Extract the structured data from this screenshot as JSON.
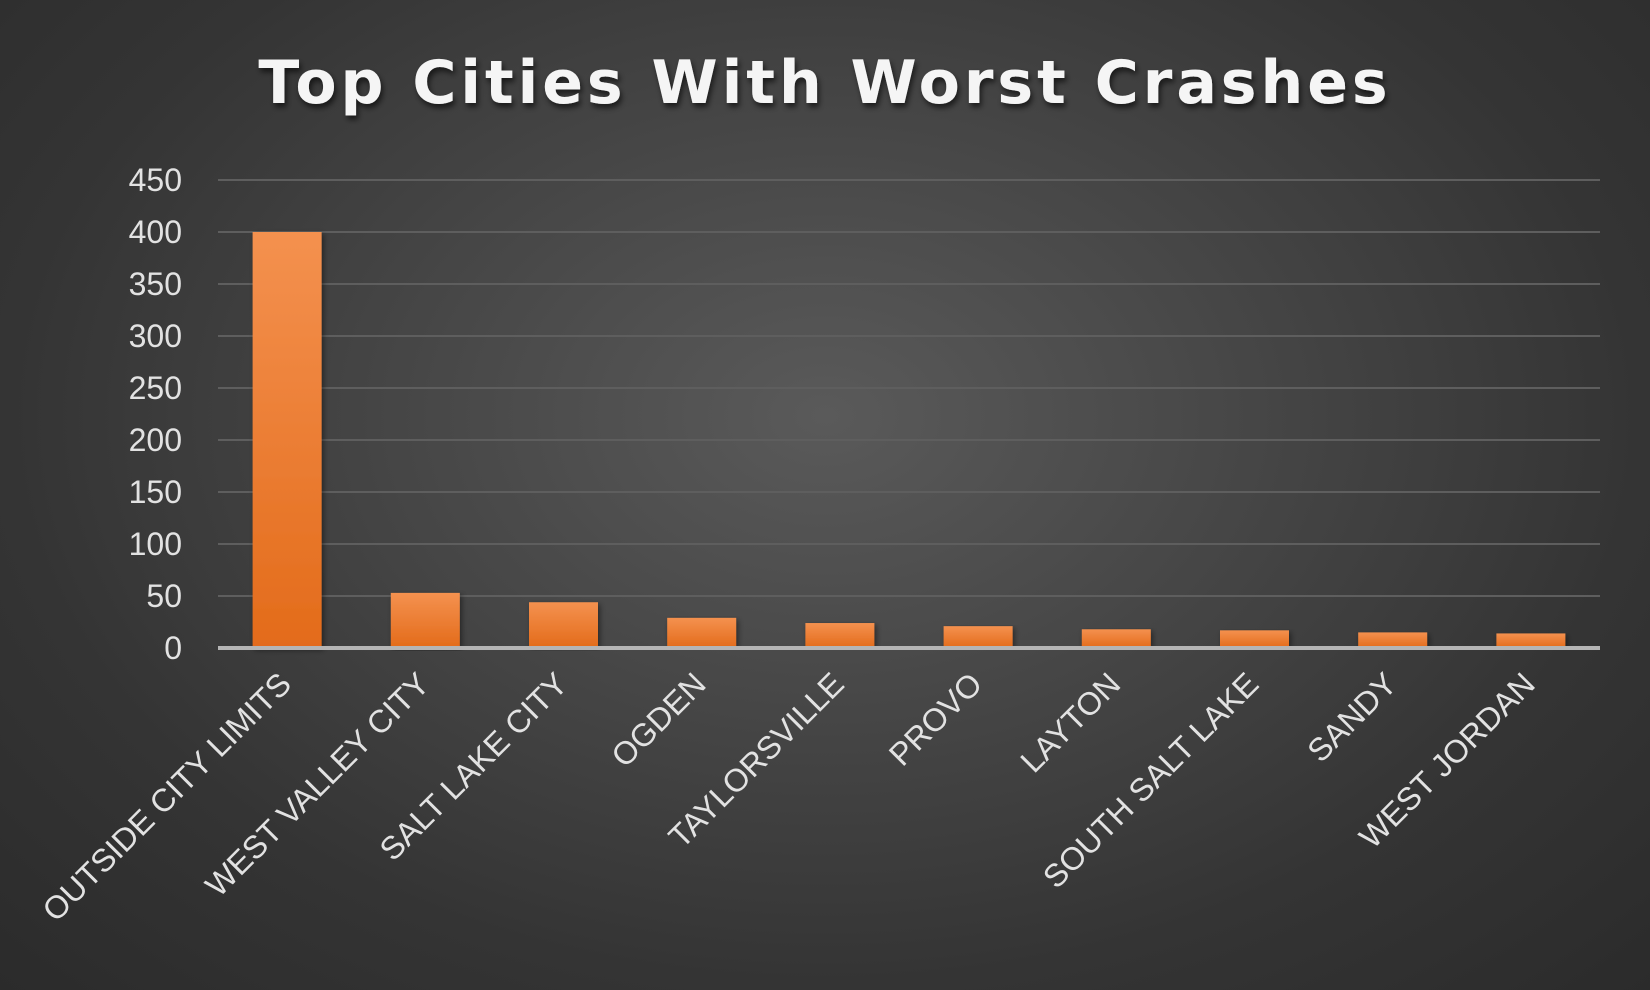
{
  "chart_data": {
    "type": "bar",
    "title": "Top Cities With Worst Crashes",
    "xlabel": "",
    "ylabel": "",
    "categories": [
      "OUTSIDE CITY LIMITS",
      "WEST VALLEY CITY",
      "SALT LAKE CITY",
      "OGDEN",
      "TAYLORSVILLE",
      "PROVO",
      "LAYTON",
      "SOUTH SALT LAKE",
      "SANDY",
      "WEST JORDAN"
    ],
    "values": [
      400,
      53,
      44,
      29,
      24,
      21,
      18,
      17,
      15,
      14
    ],
    "ylim": [
      0,
      450
    ],
    "yticks": [
      0,
      50,
      100,
      150,
      200,
      250,
      300,
      350,
      400,
      450
    ],
    "grid": true,
    "legend": "none",
    "colors": {
      "bar_light": "#f4914f",
      "bar_dark": "#e36b1a",
      "background": "#3a3a3a"
    }
  }
}
